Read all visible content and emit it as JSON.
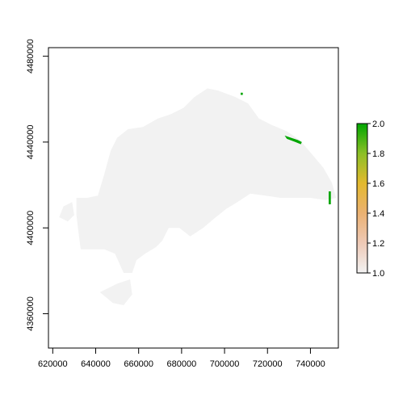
{
  "chart_data": {
    "type": "heatmap",
    "title": "",
    "xlabel": "",
    "ylabel": "",
    "xlim": [
      618000,
      753000
    ],
    "ylim": [
      4344000,
      4484000
    ],
    "x_ticks": [
      620000,
      640000,
      660000,
      680000,
      700000,
      720000,
      740000
    ],
    "y_ticks": [
      4360000,
      4400000,
      4440000,
      4480000
    ],
    "x_tick_labels": [
      "620000",
      "640000",
      "660000",
      "680000",
      "700000",
      "720000",
      "740000"
    ],
    "y_tick_labels": [
      "4360000",
      "4400000",
      "4440000",
      "4480000"
    ],
    "legend": {
      "placement": "right",
      "min": 1.0,
      "max": 2.0,
      "ticks": [
        1.0,
        1.2,
        1.4,
        1.6,
        1.8,
        2.0
      ],
      "tick_labels": [
        "1.0",
        "1.2",
        "1.4",
        "1.6",
        "1.8",
        "2.0"
      ],
      "colors": [
        "#f2f2f2",
        "#eec9b6",
        "#ebb172",
        "#e3b92e",
        "#8cbf26",
        "#00a600"
      ]
    },
    "regions": [
      {
        "value": 1.0,
        "color": "#f2f2f2",
        "outline": [
          [
            692000,
            4465000
          ],
          [
            697000,
            4464000
          ],
          [
            705000,
            4461000
          ],
          [
            711000,
            4458000
          ],
          [
            716000,
            4451000
          ],
          [
            722000,
            4448000
          ],
          [
            729000,
            4445000
          ],
          [
            735000,
            4441000
          ],
          [
            741000,
            4434000
          ],
          [
            746000,
            4428000
          ],
          [
            750000,
            4421000
          ],
          [
            752000,
            4414000
          ],
          [
            747000,
            4413000
          ],
          [
            740000,
            4414000
          ],
          [
            733000,
            4414000
          ],
          [
            726000,
            4414000
          ],
          [
            719000,
            4415000
          ],
          [
            712000,
            4416000
          ],
          [
            706000,
            4412000
          ],
          [
            701000,
            4409000
          ],
          [
            696000,
            4405000
          ],
          [
            690000,
            4400000
          ],
          [
            684000,
            4396000
          ],
          [
            679000,
            4400000
          ],
          [
            674000,
            4400000
          ],
          [
            671000,
            4394000
          ],
          [
            668000,
            4391000
          ],
          [
            663000,
            4388000
          ],
          [
            659000,
            4385000
          ],
          [
            657000,
            4379000
          ],
          [
            653000,
            4379000
          ],
          [
            649000,
            4388000
          ],
          [
            644000,
            4390000
          ],
          [
            638000,
            4390000
          ],
          [
            633000,
            4390000
          ],
          [
            632000,
            4398000
          ],
          [
            631000,
            4406000
          ],
          [
            631000,
            4414000
          ],
          [
            636000,
            4414000
          ],
          [
            641000,
            4415000
          ],
          [
            644000,
            4425000
          ],
          [
            647000,
            4436000
          ],
          [
            650000,
            4442000
          ],
          [
            655000,
            4446000
          ],
          [
            662000,
            4447000
          ],
          [
            669000,
            4451000
          ],
          [
            675000,
            4453000
          ],
          [
            681000,
            4456000
          ],
          [
            686000,
            4461000
          ]
        ]
      },
      {
        "value": 1.0,
        "color": "#f2f2f2",
        "outline": [
          [
            625000,
            4410000
          ],
          [
            629000,
            4412000
          ],
          [
            630000,
            4406000
          ],
          [
            627000,
            4403000
          ],
          [
            623000,
            4405000
          ]
        ]
      },
      {
        "value": 1.0,
        "color": "#f2f2f2",
        "outline": [
          [
            642000,
            4370000
          ],
          [
            650000,
            4374000
          ],
          [
            656000,
            4376000
          ],
          [
            657000,
            4369000
          ],
          [
            653000,
            4364000
          ],
          [
            648000,
            4365000
          ]
        ]
      },
      {
        "value": 2.0,
        "color": "#00a600",
        "outline": [
          [
            728000,
            4443000
          ],
          [
            731000,
            4442000
          ],
          [
            734000,
            4441000
          ],
          [
            736000,
            4440000
          ],
          [
            735500,
            4439000
          ],
          [
            733000,
            4440000
          ],
          [
            729000,
            4441500
          ]
        ]
      },
      {
        "value": 2.0,
        "color": "#00a600",
        "outline": [
          [
            748500,
            4417000
          ],
          [
            749500,
            4417000
          ],
          [
            749500,
            4411000
          ],
          [
            748500,
            4411000
          ]
        ]
      },
      {
        "value": 2.0,
        "color": "#00a600",
        "outline": [
          [
            707500,
            4463000
          ],
          [
            708500,
            4463000
          ],
          [
            708500,
            4462000
          ],
          [
            707500,
            4462000
          ]
        ]
      }
    ]
  }
}
